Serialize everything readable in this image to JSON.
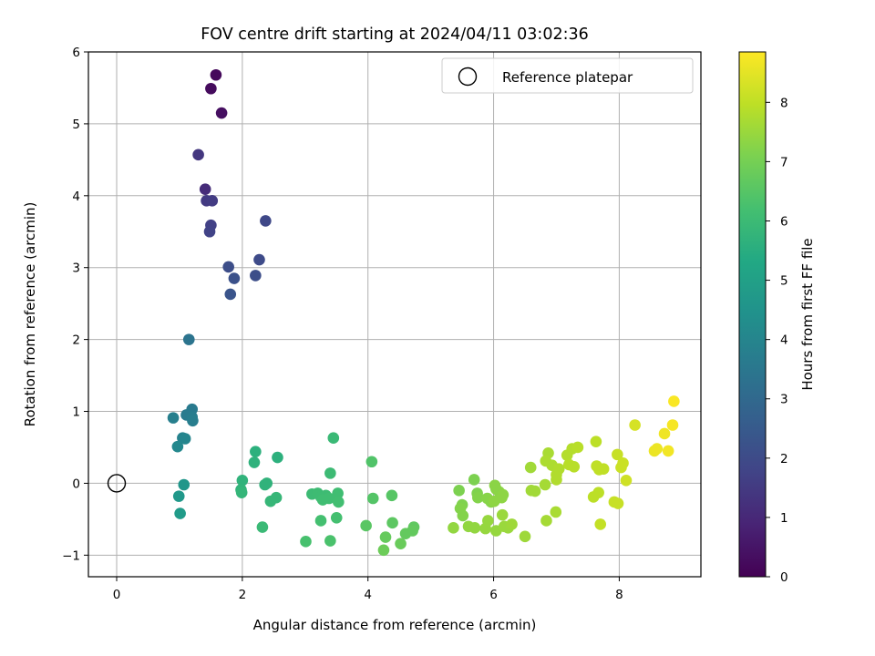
{
  "chart_data": {
    "type": "scatter",
    "title": "FOV centre drift starting at 2024/04/11 03:02:36",
    "xlabel": "Angular distance from reference (arcmin)",
    "ylabel": "Rotation from reference (arcmin)",
    "xlim": [
      -0.45,
      9.3
    ],
    "ylim": [
      -1.3,
      6.0
    ],
    "xticks": [
      0,
      2,
      4,
      6,
      8
    ],
    "yticks": [
      -1,
      0,
      1,
      2,
      3,
      4,
      5,
      6
    ],
    "grid": true,
    "legend": {
      "placement": "top-right",
      "entries": [
        "Reference platepar"
      ]
    },
    "reference_point": {
      "x": 0,
      "y": 0
    },
    "colorbar": {
      "label": "Hours from first FF file",
      "range": [
        0,
        8.85
      ],
      "ticks": [
        0,
        1,
        2,
        3,
        4,
        5,
        6,
        7,
        8
      ],
      "colormap": "viridis"
    },
    "points": [
      {
        "x": 1.58,
        "y": 5.68,
        "c": 0.2
      },
      {
        "x": 1.5,
        "y": 5.49,
        "c": 0.25
      },
      {
        "x": 1.67,
        "y": 5.15,
        "c": 0.35
      },
      {
        "x": 1.3,
        "y": 4.57,
        "c": 1.4
      },
      {
        "x": 1.41,
        "y": 4.09,
        "c": 1.1
      },
      {
        "x": 1.43,
        "y": 3.93,
        "c": 1.5
      },
      {
        "x": 1.52,
        "y": 3.93,
        "c": 1.55
      },
      {
        "x": 1.5,
        "y": 3.59,
        "c": 1.7
      },
      {
        "x": 1.48,
        "y": 3.5,
        "c": 1.75
      },
      {
        "x": 2.37,
        "y": 3.65,
        "c": 1.9
      },
      {
        "x": 2.27,
        "y": 3.11,
        "c": 2.0
      },
      {
        "x": 1.78,
        "y": 3.01,
        "c": 2.1
      },
      {
        "x": 2.21,
        "y": 2.89,
        "c": 2.1
      },
      {
        "x": 1.87,
        "y": 2.85,
        "c": 2.2
      },
      {
        "x": 1.81,
        "y": 2.63,
        "c": 2.3
      },
      {
        "x": 1.15,
        "y": 2.0,
        "c": 3.4
      },
      {
        "x": 1.2,
        "y": 1.03,
        "c": 3.6
      },
      {
        "x": 1.11,
        "y": 0.95,
        "c": 3.65
      },
      {
        "x": 1.2,
        "y": 0.92,
        "c": 3.7
      },
      {
        "x": 1.21,
        "y": 0.87,
        "c": 3.75
      },
      {
        "x": 0.9,
        "y": 0.91,
        "c": 3.8
      },
      {
        "x": 1.05,
        "y": 0.63,
        "c": 3.9
      },
      {
        "x": 1.09,
        "y": 0.62,
        "c": 4.0
      },
      {
        "x": 0.97,
        "y": 0.51,
        "c": 4.1
      },
      {
        "x": 1.07,
        "y": -0.02,
        "c": 4.6
      },
      {
        "x": 0.99,
        "y": -0.18,
        "c": 4.7
      },
      {
        "x": 1.01,
        "y": -0.42,
        "c": 4.8
      },
      {
        "x": 2.21,
        "y": 0.44,
        "c": 5.6
      },
      {
        "x": 2.56,
        "y": 0.36,
        "c": 5.6
      },
      {
        "x": 2.19,
        "y": 0.29,
        "c": 5.65
      },
      {
        "x": 2.0,
        "y": 0.04,
        "c": 5.7
      },
      {
        "x": 2.39,
        "y": 0.0,
        "c": 5.7
      },
      {
        "x": 2.36,
        "y": -0.02,
        "c": 5.7
      },
      {
        "x": 1.98,
        "y": -0.09,
        "c": 5.75
      },
      {
        "x": 1.99,
        "y": -0.13,
        "c": 5.8
      },
      {
        "x": 2.54,
        "y": -0.2,
        "c": 5.85
      },
      {
        "x": 2.45,
        "y": -0.25,
        "c": 5.85
      },
      {
        "x": 2.32,
        "y": -0.61,
        "c": 5.95
      },
      {
        "x": 3.45,
        "y": 0.63,
        "c": 5.95
      },
      {
        "x": 3.4,
        "y": 0.14,
        "c": 6.0
      },
      {
        "x": 3.11,
        "y": -0.15,
        "c": 6.0
      },
      {
        "x": 3.2,
        "y": -0.14,
        "c": 6.05
      },
      {
        "x": 3.25,
        "y": -0.19,
        "c": 6.05
      },
      {
        "x": 3.33,
        "y": -0.17,
        "c": 6.05
      },
      {
        "x": 3.28,
        "y": -0.23,
        "c": 6.1
      },
      {
        "x": 3.38,
        "y": -0.21,
        "c": 6.1
      },
      {
        "x": 3.52,
        "y": -0.14,
        "c": 6.1
      },
      {
        "x": 3.53,
        "y": -0.26,
        "c": 6.15
      },
      {
        "x": 3.5,
        "y": -0.48,
        "c": 6.2
      },
      {
        "x": 3.25,
        "y": -0.52,
        "c": 6.2
      },
      {
        "x": 3.01,
        "y": -0.81,
        "c": 6.25
      },
      {
        "x": 3.4,
        "y": -0.8,
        "c": 6.3
      },
      {
        "x": 4.06,
        "y": 0.3,
        "c": 6.4
      },
      {
        "x": 4.08,
        "y": -0.21,
        "c": 6.45
      },
      {
        "x": 4.38,
        "y": -0.17,
        "c": 6.5
      },
      {
        "x": 3.97,
        "y": -0.59,
        "c": 6.55
      },
      {
        "x": 4.39,
        "y": -0.55,
        "c": 6.6
      },
      {
        "x": 4.73,
        "y": -0.61,
        "c": 6.65
      },
      {
        "x": 4.71,
        "y": -0.66,
        "c": 6.7
      },
      {
        "x": 4.6,
        "y": -0.7,
        "c": 6.7
      },
      {
        "x": 4.28,
        "y": -0.75,
        "c": 6.75
      },
      {
        "x": 4.52,
        "y": -0.84,
        "c": 6.8
      },
      {
        "x": 4.25,
        "y": -0.93,
        "c": 6.85
      },
      {
        "x": 5.69,
        "y": 0.05,
        "c": 7.1
      },
      {
        "x": 5.45,
        "y": -0.1,
        "c": 7.1
      },
      {
        "x": 5.74,
        "y": -0.14,
        "c": 7.15
      },
      {
        "x": 5.5,
        "y": -0.3,
        "c": 7.15
      },
      {
        "x": 5.47,
        "y": -0.35,
        "c": 7.2
      },
      {
        "x": 5.51,
        "y": -0.45,
        "c": 7.2
      },
      {
        "x": 5.75,
        "y": -0.2,
        "c": 7.2
      },
      {
        "x": 5.9,
        "y": -0.21,
        "c": 7.25
      },
      {
        "x": 5.96,
        "y": -0.26,
        "c": 7.25
      },
      {
        "x": 6.02,
        "y": -0.03,
        "c": 7.3
      },
      {
        "x": 6.04,
        "y": -0.08,
        "c": 7.3
      },
      {
        "x": 6.09,
        "y": -0.12,
        "c": 7.3
      },
      {
        "x": 6.15,
        "y": -0.16,
        "c": 7.35
      },
      {
        "x": 6.13,
        "y": -0.2,
        "c": 7.35
      },
      {
        "x": 6.01,
        "y": -0.25,
        "c": 7.35
      },
      {
        "x": 5.36,
        "y": -0.62,
        "c": 7.4
      },
      {
        "x": 5.6,
        "y": -0.6,
        "c": 7.4
      },
      {
        "x": 5.7,
        "y": -0.62,
        "c": 7.4
      },
      {
        "x": 5.87,
        "y": -0.63,
        "c": 7.45
      },
      {
        "x": 5.91,
        "y": -0.52,
        "c": 7.45
      },
      {
        "x": 6.04,
        "y": -0.66,
        "c": 7.45
      },
      {
        "x": 6.14,
        "y": -0.44,
        "c": 7.5
      },
      {
        "x": 6.17,
        "y": -0.6,
        "c": 7.5
      },
      {
        "x": 6.23,
        "y": -0.62,
        "c": 7.5
      },
      {
        "x": 6.29,
        "y": -0.57,
        "c": 7.55
      },
      {
        "x": 6.5,
        "y": -0.74,
        "c": 7.55
      },
      {
        "x": 6.59,
        "y": 0.22,
        "c": 7.6
      },
      {
        "x": 6.6,
        "y": -0.1,
        "c": 7.6
      },
      {
        "x": 6.66,
        "y": -0.11,
        "c": 7.6
      },
      {
        "x": 6.82,
        "y": -0.02,
        "c": 7.65
      },
      {
        "x": 6.84,
        "y": -0.52,
        "c": 7.65
      },
      {
        "x": 6.99,
        "y": -0.4,
        "c": 7.7
      },
      {
        "x": 6.87,
        "y": 0.42,
        "c": 7.7
      },
      {
        "x": 6.83,
        "y": 0.31,
        "c": 7.75
      },
      {
        "x": 6.93,
        "y": 0.25,
        "c": 7.75
      },
      {
        "x": 7.0,
        "y": 0.12,
        "c": 7.8
      },
      {
        "x": 7.04,
        "y": 0.2,
        "c": 7.8
      },
      {
        "x": 7.0,
        "y": 0.05,
        "c": 7.8
      },
      {
        "x": 7.17,
        "y": 0.39,
        "c": 7.85
      },
      {
        "x": 7.25,
        "y": 0.48,
        "c": 7.85
      },
      {
        "x": 7.34,
        "y": 0.5,
        "c": 7.9
      },
      {
        "x": 7.2,
        "y": 0.26,
        "c": 7.9
      },
      {
        "x": 7.28,
        "y": 0.23,
        "c": 7.9
      },
      {
        "x": 7.63,
        "y": 0.58,
        "c": 7.95
      },
      {
        "x": 7.59,
        "y": -0.19,
        "c": 7.95
      },
      {
        "x": 7.67,
        "y": -0.13,
        "c": 7.95
      },
      {
        "x": 7.64,
        "y": 0.24,
        "c": 8.0
      },
      {
        "x": 7.68,
        "y": 0.19,
        "c": 8.0
      },
      {
        "x": 7.75,
        "y": 0.2,
        "c": 8.0
      },
      {
        "x": 7.7,
        "y": -0.57,
        "c": 8.05
      },
      {
        "x": 7.92,
        "y": -0.26,
        "c": 8.1
      },
      {
        "x": 7.98,
        "y": -0.28,
        "c": 8.1
      },
      {
        "x": 7.97,
        "y": 0.4,
        "c": 8.1
      },
      {
        "x": 8.06,
        "y": 0.28,
        "c": 8.15
      },
      {
        "x": 8.03,
        "y": 0.22,
        "c": 8.15
      },
      {
        "x": 8.11,
        "y": 0.04,
        "c": 8.2
      },
      {
        "x": 8.25,
        "y": 0.81,
        "c": 8.3
      },
      {
        "x": 8.56,
        "y": 0.45,
        "c": 8.6
      },
      {
        "x": 8.6,
        "y": 0.48,
        "c": 8.62
      },
      {
        "x": 8.72,
        "y": 0.69,
        "c": 8.65
      },
      {
        "x": 8.78,
        "y": 0.45,
        "c": 8.7
      },
      {
        "x": 8.85,
        "y": 0.81,
        "c": 8.75
      },
      {
        "x": 8.87,
        "y": 1.14,
        "c": 8.8
      }
    ]
  }
}
